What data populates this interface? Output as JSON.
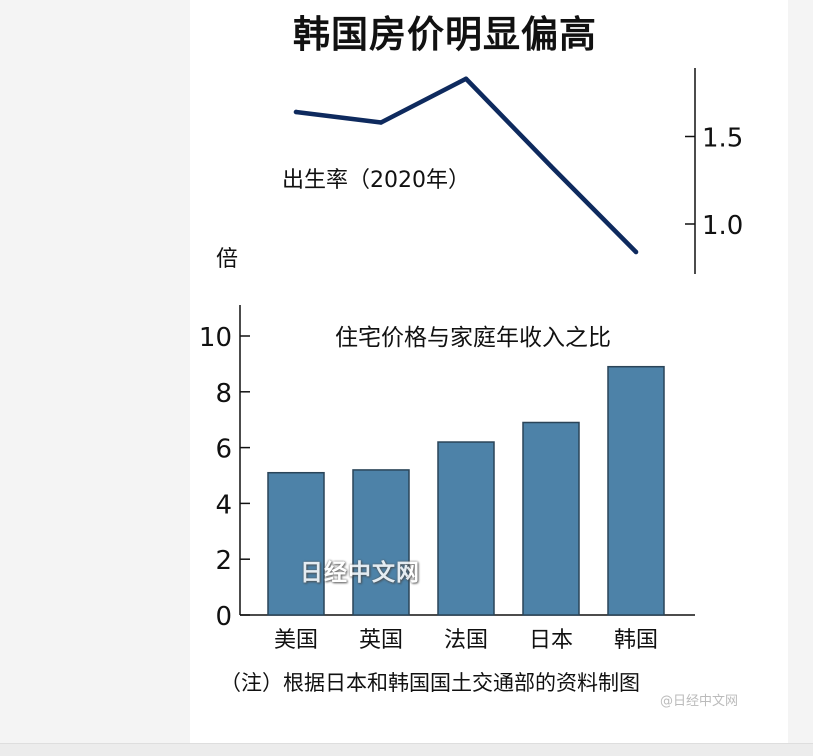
{
  "title": "韩国房价明显偏高",
  "note": "（注）根据日本和韩国国土交通部的资料制图",
  "watermark": "日经中文网",
  "weibo_watermark": "@日经中文网",
  "chart_data": [
    {
      "type": "line",
      "title": "出生率（2020年）",
      "x": [
        "美国",
        "英国",
        "法国",
        "日本",
        "韩国"
      ],
      "values": [
        1.64,
        1.58,
        1.83,
        1.33,
        0.84
      ],
      "yticks": [
        "1.5",
        "1.0"
      ],
      "ylim": [
        0.8,
        1.9
      ],
      "axis_position": "right",
      "color": "#0e2a5e"
    },
    {
      "type": "bar",
      "title": "住宅价格与家庭年收入之比",
      "ylabel": "倍",
      "categories": [
        "美国",
        "英国",
        "法国",
        "日本",
        "韩国"
      ],
      "values": [
        5.1,
        5.2,
        6.2,
        6.9,
        8.9
      ],
      "yticks": [
        "10",
        "8",
        "6",
        "4",
        "2",
        "0"
      ],
      "ylim": [
        0,
        11
      ],
      "color": "#4d82a8"
    }
  ]
}
